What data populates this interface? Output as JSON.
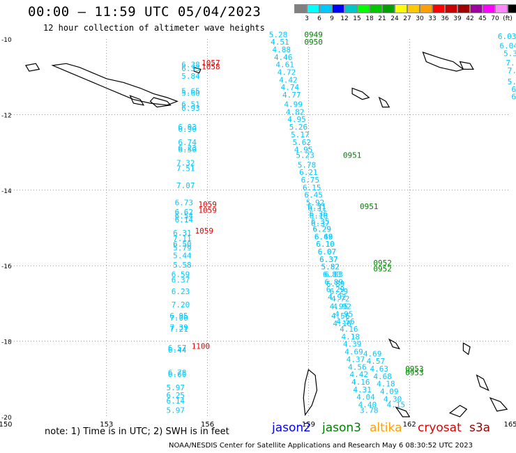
{
  "header": {
    "title": "00:00 – 11:59 UTC 05/04/2023",
    "subtitle": "12 hour collection of altimeter wave heights"
  },
  "colorbar": {
    "colors": [
      "#808080",
      "#00ffff",
      "#00c8ff",
      "#0000ff",
      "#00c8c8",
      "#00ff00",
      "#00c800",
      "#00a000",
      "#ffff00",
      "#ffc800",
      "#ffa000",
      "#ff0000",
      "#c80000",
      "#a00000",
      "#a000a0",
      "#ff00ff",
      "#ff88ff",
      "#000000"
    ],
    "labels": [
      "3",
      "6",
      "9",
      "12",
      "15",
      "18",
      "21",
      "24",
      "27",
      "30",
      "33",
      "36",
      "39",
      "42",
      "45",
      "70",
      "(ft)"
    ]
  },
  "map": {
    "lon_ticks": [
      "150",
      "153",
      "156",
      "159",
      "162",
      "165"
    ],
    "lat_ticks": [
      "-10",
      "-12",
      "-14",
      "-16",
      "-18",
      "-20"
    ],
    "coastline_color": "#000000",
    "grid_color": "#555555"
  },
  "chart_data": {
    "type": "scatter",
    "xlabel": "",
    "ylabel": "",
    "xlim": [
      150,
      165
    ],
    "ylim": [
      -20,
      -10
    ],
    "series": [
      {
        "color": "#00c8ff",
        "points": [
          {
            "lon": 155.5,
            "lat": -10.75,
            "v": "6.38"
          },
          {
            "lon": 155.5,
            "lat": -10.85,
            "v": "6.33"
          },
          {
            "lon": 155.5,
            "lat": -11.05,
            "v": "5.84"
          },
          {
            "lon": 155.5,
            "lat": -11.45,
            "v": "5.65"
          },
          {
            "lon": 155.5,
            "lat": -11.5,
            "v": "5.60"
          },
          {
            "lon": 155.5,
            "lat": -11.8,
            "v": "6.51"
          },
          {
            "lon": 155.5,
            "lat": -11.9,
            "v": "6.93"
          },
          {
            "lon": 155.4,
            "lat": -12.4,
            "v": "6.93"
          },
          {
            "lon": 155.4,
            "lat": -12.45,
            "v": "6.90"
          },
          {
            "lon": 155.4,
            "lat": -12.8,
            "v": "6.74"
          },
          {
            "lon": 155.4,
            "lat": -12.95,
            "v": "6.23"
          },
          {
            "lon": 155.4,
            "lat": -13.0,
            "v": "6.50"
          },
          {
            "lon": 155.35,
            "lat": -13.35,
            "v": "7.32"
          },
          {
            "lon": 155.35,
            "lat": -13.5,
            "v": "7.51"
          },
          {
            "lon": 155.35,
            "lat": -13.95,
            "v": "7.07"
          },
          {
            "lon": 155.3,
            "lat": -14.4,
            "v": "6.73"
          },
          {
            "lon": 155.3,
            "lat": -14.65,
            "v": "6.62"
          },
          {
            "lon": 155.3,
            "lat": -14.75,
            "v": "6.54"
          },
          {
            "lon": 155.3,
            "lat": -14.85,
            "v": "6.14"
          },
          {
            "lon": 155.25,
            "lat": -15.2,
            "v": "6.31"
          },
          {
            "lon": 155.25,
            "lat": -15.35,
            "v": "7.11"
          },
          {
            "lon": 155.25,
            "lat": -15.5,
            "v": "6.50"
          },
          {
            "lon": 155.25,
            "lat": -15.6,
            "v": "5.79"
          },
          {
            "lon": 155.25,
            "lat": -15.8,
            "v": "5.44"
          },
          {
            "lon": 155.25,
            "lat": -16.05,
            "v": "5.58"
          },
          {
            "lon": 155.2,
            "lat": -16.3,
            "v": "6.59"
          },
          {
            "lon": 155.2,
            "lat": -16.45,
            "v": "6.37"
          },
          {
            "lon": 155.2,
            "lat": -16.75,
            "v": "6.23"
          },
          {
            "lon": 155.2,
            "lat": -17.1,
            "v": "7.20"
          },
          {
            "lon": 155.15,
            "lat": -17.4,
            "v": "6.95"
          },
          {
            "lon": 155.15,
            "lat": -17.45,
            "v": "7.00"
          },
          {
            "lon": 155.15,
            "lat": -17.7,
            "v": "7.39"
          },
          {
            "lon": 155.15,
            "lat": -17.75,
            "v": "7.21"
          },
          {
            "lon": 155.1,
            "lat": -18.25,
            "v": "6.57"
          },
          {
            "lon": 155.1,
            "lat": -18.3,
            "v": "6.44"
          },
          {
            "lon": 155.1,
            "lat": -18.9,
            "v": "6.78"
          },
          {
            "lon": 155.1,
            "lat": -18.95,
            "v": "6.60"
          },
          {
            "lon": 155.05,
            "lat": -19.3,
            "v": "5.97"
          },
          {
            "lon": 155.05,
            "lat": -19.5,
            "v": "6.25"
          },
          {
            "lon": 155.05,
            "lat": -19.65,
            "v": "6.14"
          },
          {
            "lon": 155.05,
            "lat": -19.9,
            "v": "5.97"
          }
        ]
      },
      {
        "color": "#00c8ff",
        "points": [
          {
            "lon": 158.1,
            "lat": -9.95,
            "v": "5.28"
          },
          {
            "lon": 158.15,
            "lat": -10.15,
            "v": "4.51"
          },
          {
            "lon": 158.2,
            "lat": -10.35,
            "v": "4.88"
          },
          {
            "lon": 158.25,
            "lat": -10.55,
            "v": "4.46"
          },
          {
            "lon": 158.3,
            "lat": -10.75,
            "v": "4.61"
          },
          {
            "lon": 158.35,
            "lat": -10.95,
            "v": "4.72"
          },
          {
            "lon": 158.4,
            "lat": -11.15,
            "v": "4.42"
          },
          {
            "lon": 158.45,
            "lat": -11.35,
            "v": "4.74"
          },
          {
            "lon": 158.5,
            "lat": -11.55,
            "v": "4.77"
          },
          {
            "lon": 158.55,
            "lat": -11.8,
            "v": "4.99"
          },
          {
            "lon": 158.6,
            "lat": -12.0,
            "v": "4.82"
          },
          {
            "lon": 158.65,
            "lat": -12.2,
            "v": "4.95"
          },
          {
            "lon": 158.7,
            "lat": -12.4,
            "v": "5.26"
          },
          {
            "lon": 158.75,
            "lat": -12.6,
            "v": "5.17"
          },
          {
            "lon": 158.8,
            "lat": -12.8,
            "v": "5.62"
          },
          {
            "lon": 158.85,
            "lat": -13.0,
            "v": "4.95"
          },
          {
            "lon": 158.9,
            "lat": -13.15,
            "v": "5.23"
          },
          {
            "lon": 158.95,
            "lat": -13.4,
            "v": "5.78"
          },
          {
            "lon": 159.0,
            "lat": -13.6,
            "v": "6.21"
          },
          {
            "lon": 159.05,
            "lat": -13.8,
            "v": "6.75"
          },
          {
            "lon": 159.1,
            "lat": -14.0,
            "v": "6.15"
          },
          {
            "lon": 159.15,
            "lat": -14.2,
            "v": "6.45"
          },
          {
            "lon": 159.2,
            "lat": -14.4,
            "v": "5.92"
          },
          {
            "lon": 159.25,
            "lat": -14.55,
            "v": "6.31"
          },
          {
            "lon": 159.3,
            "lat": -14.75,
            "v": "6.16"
          },
          {
            "lon": 159.35,
            "lat": -14.95,
            "v": "6.37"
          },
          {
            "lon": 159.4,
            "lat": -15.1,
            "v": "6.29"
          },
          {
            "lon": 159.45,
            "lat": -15.3,
            "v": "6.48"
          },
          {
            "lon": 159.5,
            "lat": -15.5,
            "v": "6.10"
          },
          {
            "lon": 159.55,
            "lat": -15.7,
            "v": "6.07"
          },
          {
            "lon": 159.6,
            "lat": -15.9,
            "v": "6.37"
          },
          {
            "lon": 159.65,
            "lat": -16.1,
            "v": "5.82"
          },
          {
            "lon": 159.7,
            "lat": -16.3,
            "v": "6.83"
          },
          {
            "lon": 159.75,
            "lat": -16.5,
            "v": "6.89"
          },
          {
            "lon": 159.8,
            "lat": -16.7,
            "v": "6.29"
          },
          {
            "lon": 159.85,
            "lat": -16.9,
            "v": "4.92"
          },
          {
            "lon": 159.9,
            "lat": -17.15,
            "v": "4.95"
          },
          {
            "lon": 159.95,
            "lat": -17.4,
            "v": "4.56"
          },
          {
            "lon": 160.0,
            "lat": -17.6,
            "v": "4.16"
          }
        ]
      },
      {
        "color": "#00c8ff",
        "points": [
          {
            "lon": 159.25,
            "lat": -14.5,
            "v": "6.31"
          },
          {
            "lon": 159.3,
            "lat": -14.7,
            "v": "6.36"
          },
          {
            "lon": 159.35,
            "lat": -14.9,
            "v": "6.35"
          },
          {
            "lon": 159.4,
            "lat": -15.1,
            "v": "6.29"
          },
          {
            "lon": 159.45,
            "lat": -15.3,
            "v": "6.69"
          },
          {
            "lon": 159.5,
            "lat": -15.5,
            "v": "6.10"
          },
          {
            "lon": 159.55,
            "lat": -15.7,
            "v": "6.07"
          },
          {
            "lon": 159.6,
            "lat": -15.9,
            "v": "6.37"
          },
          {
            "lon": 159.65,
            "lat": -16.1,
            "v": "5.82"
          },
          {
            "lon": 159.75,
            "lat": -16.3,
            "v": "6.83"
          },
          {
            "lon": 159.8,
            "lat": -16.55,
            "v": "6.89"
          },
          {
            "lon": 159.9,
            "lat": -16.75,
            "v": "6.29"
          },
          {
            "lon": 159.95,
            "lat": -16.95,
            "v": "4.72"
          },
          {
            "lon": 160.0,
            "lat": -17.15,
            "v": "4.92"
          },
          {
            "lon": 160.05,
            "lat": -17.35,
            "v": "4.95"
          },
          {
            "lon": 160.1,
            "lat": -17.55,
            "v": "4.56"
          },
          {
            "lon": 160.2,
            "lat": -17.75,
            "v": "4.16"
          },
          {
            "lon": 160.25,
            "lat": -17.95,
            "v": "4.18"
          },
          {
            "lon": 160.3,
            "lat": -18.15,
            "v": "4.39"
          },
          {
            "lon": 160.35,
            "lat": -18.35,
            "v": "4.69"
          },
          {
            "lon": 160.4,
            "lat": -18.55,
            "v": "4.37"
          },
          {
            "lon": 160.45,
            "lat": -18.75,
            "v": "4.56"
          },
          {
            "lon": 160.5,
            "lat": -18.95,
            "v": "4.42"
          },
          {
            "lon": 160.55,
            "lat": -19.15,
            "v": "4.16"
          },
          {
            "lon": 160.6,
            "lat": -19.35,
            "v": "4.31"
          },
          {
            "lon": 160.7,
            "lat": -19.55,
            "v": "4.04"
          },
          {
            "lon": 160.75,
            "lat": -19.75,
            "v": "4.40"
          },
          {
            "lon": 160.8,
            "lat": -19.9,
            "v": "3.78"
          }
        ]
      },
      {
        "color": "#00c8ff",
        "points": [
          {
            "lon": 160.9,
            "lat": -18.4,
            "v": "4.69"
          },
          {
            "lon": 161.0,
            "lat": -18.6,
            "v": "4.57"
          },
          {
            "lon": 161.1,
            "lat": -18.8,
            "v": "4.63"
          },
          {
            "lon": 161.2,
            "lat": -19.0,
            "v": "4.68"
          },
          {
            "lon": 161.3,
            "lat": -19.2,
            "v": "4.18"
          },
          {
            "lon": 161.4,
            "lat": -19.4,
            "v": "4.09"
          },
          {
            "lon": 161.5,
            "lat": -19.6,
            "v": "4.30"
          },
          {
            "lon": 161.6,
            "lat": -19.75,
            "v": "4.15"
          }
        ]
      },
      {
        "color": "#00c8ff",
        "points": [
          {
            "lon": 164.9,
            "lat": -10.0,
            "v": "6.03"
          },
          {
            "lon": 164.95,
            "lat": -10.25,
            "v": "6.04"
          },
          {
            "lon": 165.0,
            "lat": -10.45,
            "v": "5.3"
          },
          {
            "lon": 165.0,
            "lat": -10.7,
            "v": "7."
          },
          {
            "lon": 165.05,
            "lat": -10.9,
            "v": "7."
          },
          {
            "lon": 165.05,
            "lat": -11.2,
            "v": "5."
          },
          {
            "lon": 165.1,
            "lat": -11.4,
            "v": "6"
          },
          {
            "lon": 165.1,
            "lat": -11.6,
            "v": "6"
          }
        ]
      },
      {
        "color": "#e00000",
        "points": [
          {
            "lon": 156.1,
            "lat": -10.7,
            "v": "1057"
          },
          {
            "lon": 156.1,
            "lat": -10.8,
            "v": "1058"
          },
          {
            "lon": 156.0,
            "lat": -14.45,
            "v": "1059"
          },
          {
            "lon": 156.0,
            "lat": -14.6,
            "v": "1059"
          },
          {
            "lon": 155.9,
            "lat": -15.15,
            "v": "1059"
          },
          {
            "lon": 155.8,
            "lat": -18.2,
            "v": "1100"
          }
        ]
      },
      {
        "color": "#008000",
        "points": [
          {
            "lon": 159.15,
            "lat": -9.95,
            "v": "0949"
          },
          {
            "lon": 159.15,
            "lat": -10.15,
            "v": "0950"
          },
          {
            "lon": 160.3,
            "lat": -13.15,
            "v": "0951"
          },
          {
            "lon": 160.8,
            "lat": -14.5,
            "v": "0951"
          },
          {
            "lon": 161.2,
            "lat": -16.0,
            "v": "0952"
          },
          {
            "lon": 161.2,
            "lat": -16.15,
            "v": "0952"
          },
          {
            "lon": 162.15,
            "lat": -18.8,
            "v": "0953"
          },
          {
            "lon": 162.15,
            "lat": -18.9,
            "v": "0953"
          }
        ]
      }
    ]
  },
  "footer": {
    "note": "note: 1) Time is in UTC; 2) SWH is in feet",
    "credit": "NOAA/NESDIS Center for Satellite Applications and Research   May  6 08:30:52 UTC 2023",
    "satellites": [
      {
        "label": "jason2",
        "color": "#0000ff"
      },
      {
        "label": "jason3",
        "color": "#008000"
      },
      {
        "label": "altika",
        "color": "#ffa000"
      },
      {
        "label": "cryosat",
        "color": "#e00000"
      },
      {
        "label": "s3a",
        "color": "#a00000"
      }
    ]
  }
}
